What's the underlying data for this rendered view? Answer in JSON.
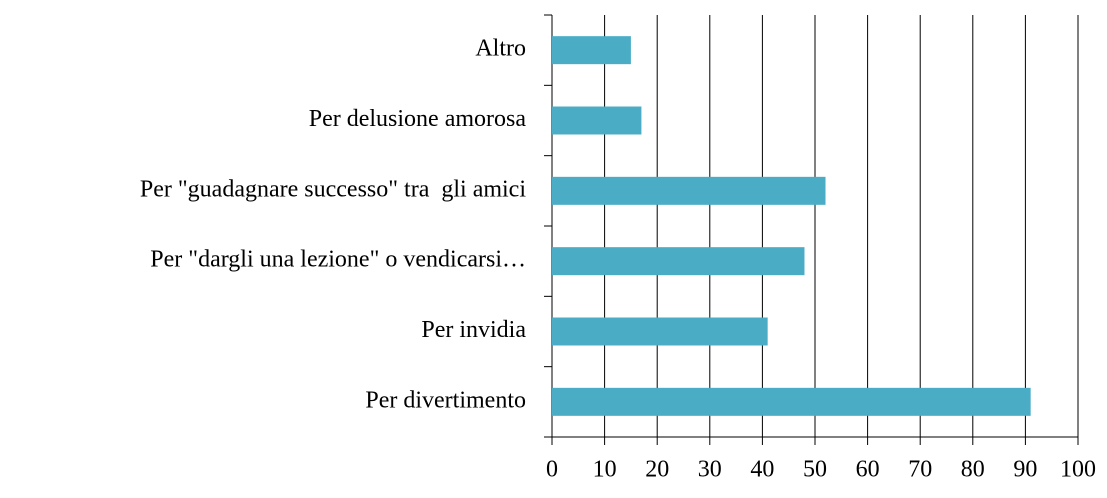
{
  "chart_data": {
    "type": "bar",
    "orientation": "horizontal",
    "categories": [
      "Altro",
      "Per delusione amorosa",
      "Per \"guadagnare successo\" tra  gli amici",
      "Per \"dargli una lezione\" o vendicarsi…",
      "Per invidia",
      "Per divertimento"
    ],
    "values": [
      15,
      17,
      52,
      48,
      41,
      91
    ],
    "color": "#4bacc6",
    "xlim": [
      0,
      100
    ],
    "xticks": [
      0,
      10,
      20,
      30,
      40,
      50,
      60,
      70,
      80,
      90,
      100
    ],
    "grid": true
  }
}
